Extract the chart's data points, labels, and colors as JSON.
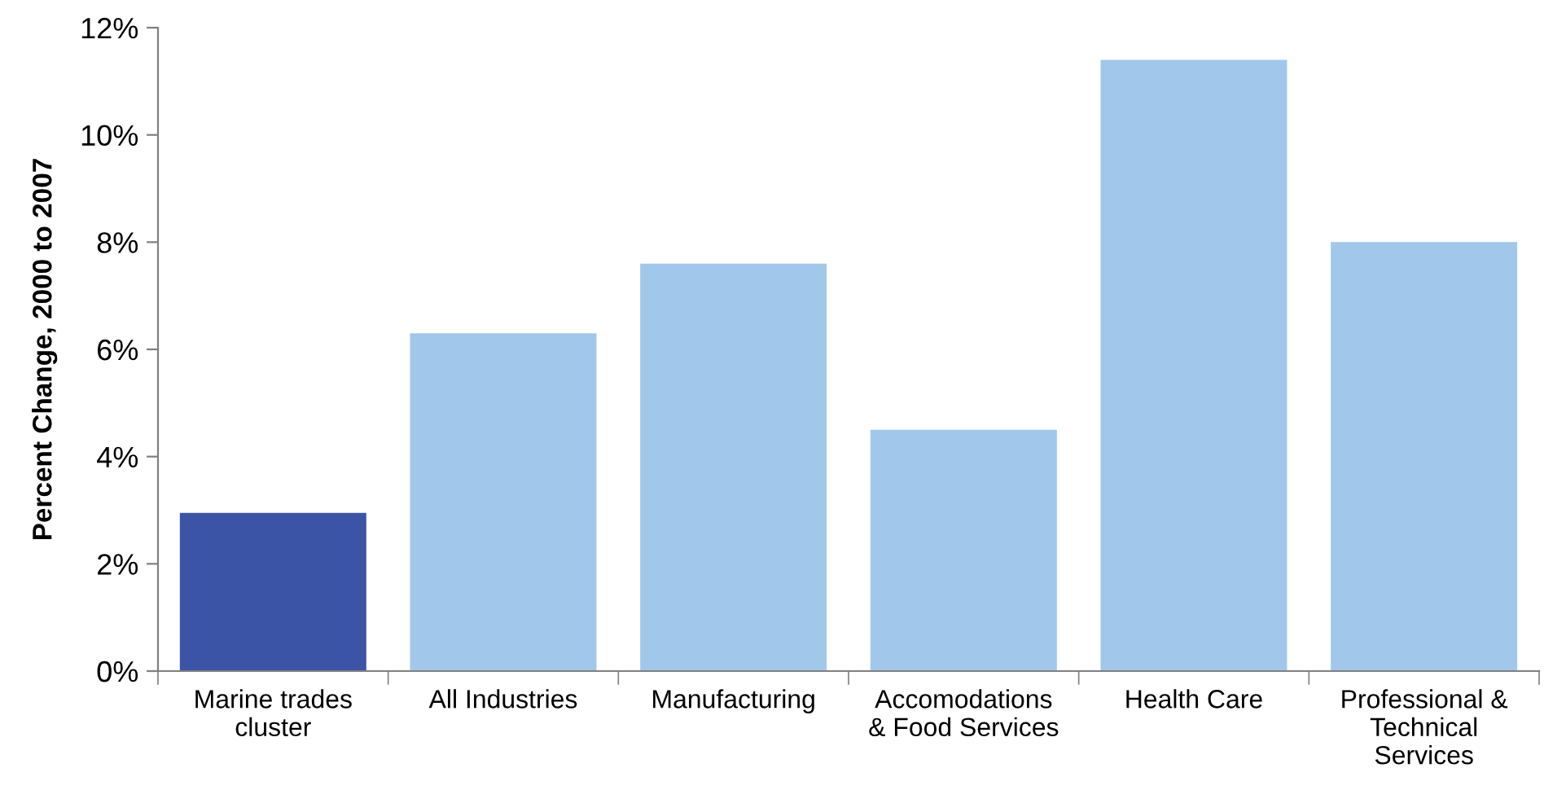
{
  "chart_data": {
    "type": "bar",
    "ylabel": "Percent Change, 2000 to 2007",
    "categories": [
      "Marine trades\ncluster",
      "All Industries",
      "Manufacturing",
      "Accomodations\n& Food Services",
      "Health Care",
      "Professional &\nTechnical\nServices"
    ],
    "values": [
      2.95,
      6.3,
      7.6,
      4.5,
      11.4,
      8.0
    ],
    "colors": [
      "#3b54a5",
      "#a1c8eb",
      "#a1c8eb",
      "#a1c8eb",
      "#a1c8eb",
      "#a1c8eb"
    ],
    "ylim": [
      0,
      12
    ],
    "yticks": [
      {
        "value": 0,
        "label": "0%"
      },
      {
        "value": 2,
        "label": "2%"
      },
      {
        "value": 4,
        "label": "4%"
      },
      {
        "value": 6,
        "label": "6%"
      },
      {
        "value": 8,
        "label": "8%"
      },
      {
        "value": 10,
        "label": "10%"
      },
      {
        "value": 12,
        "label": "12%"
      }
    ],
    "grid": false,
    "legend": false
  }
}
